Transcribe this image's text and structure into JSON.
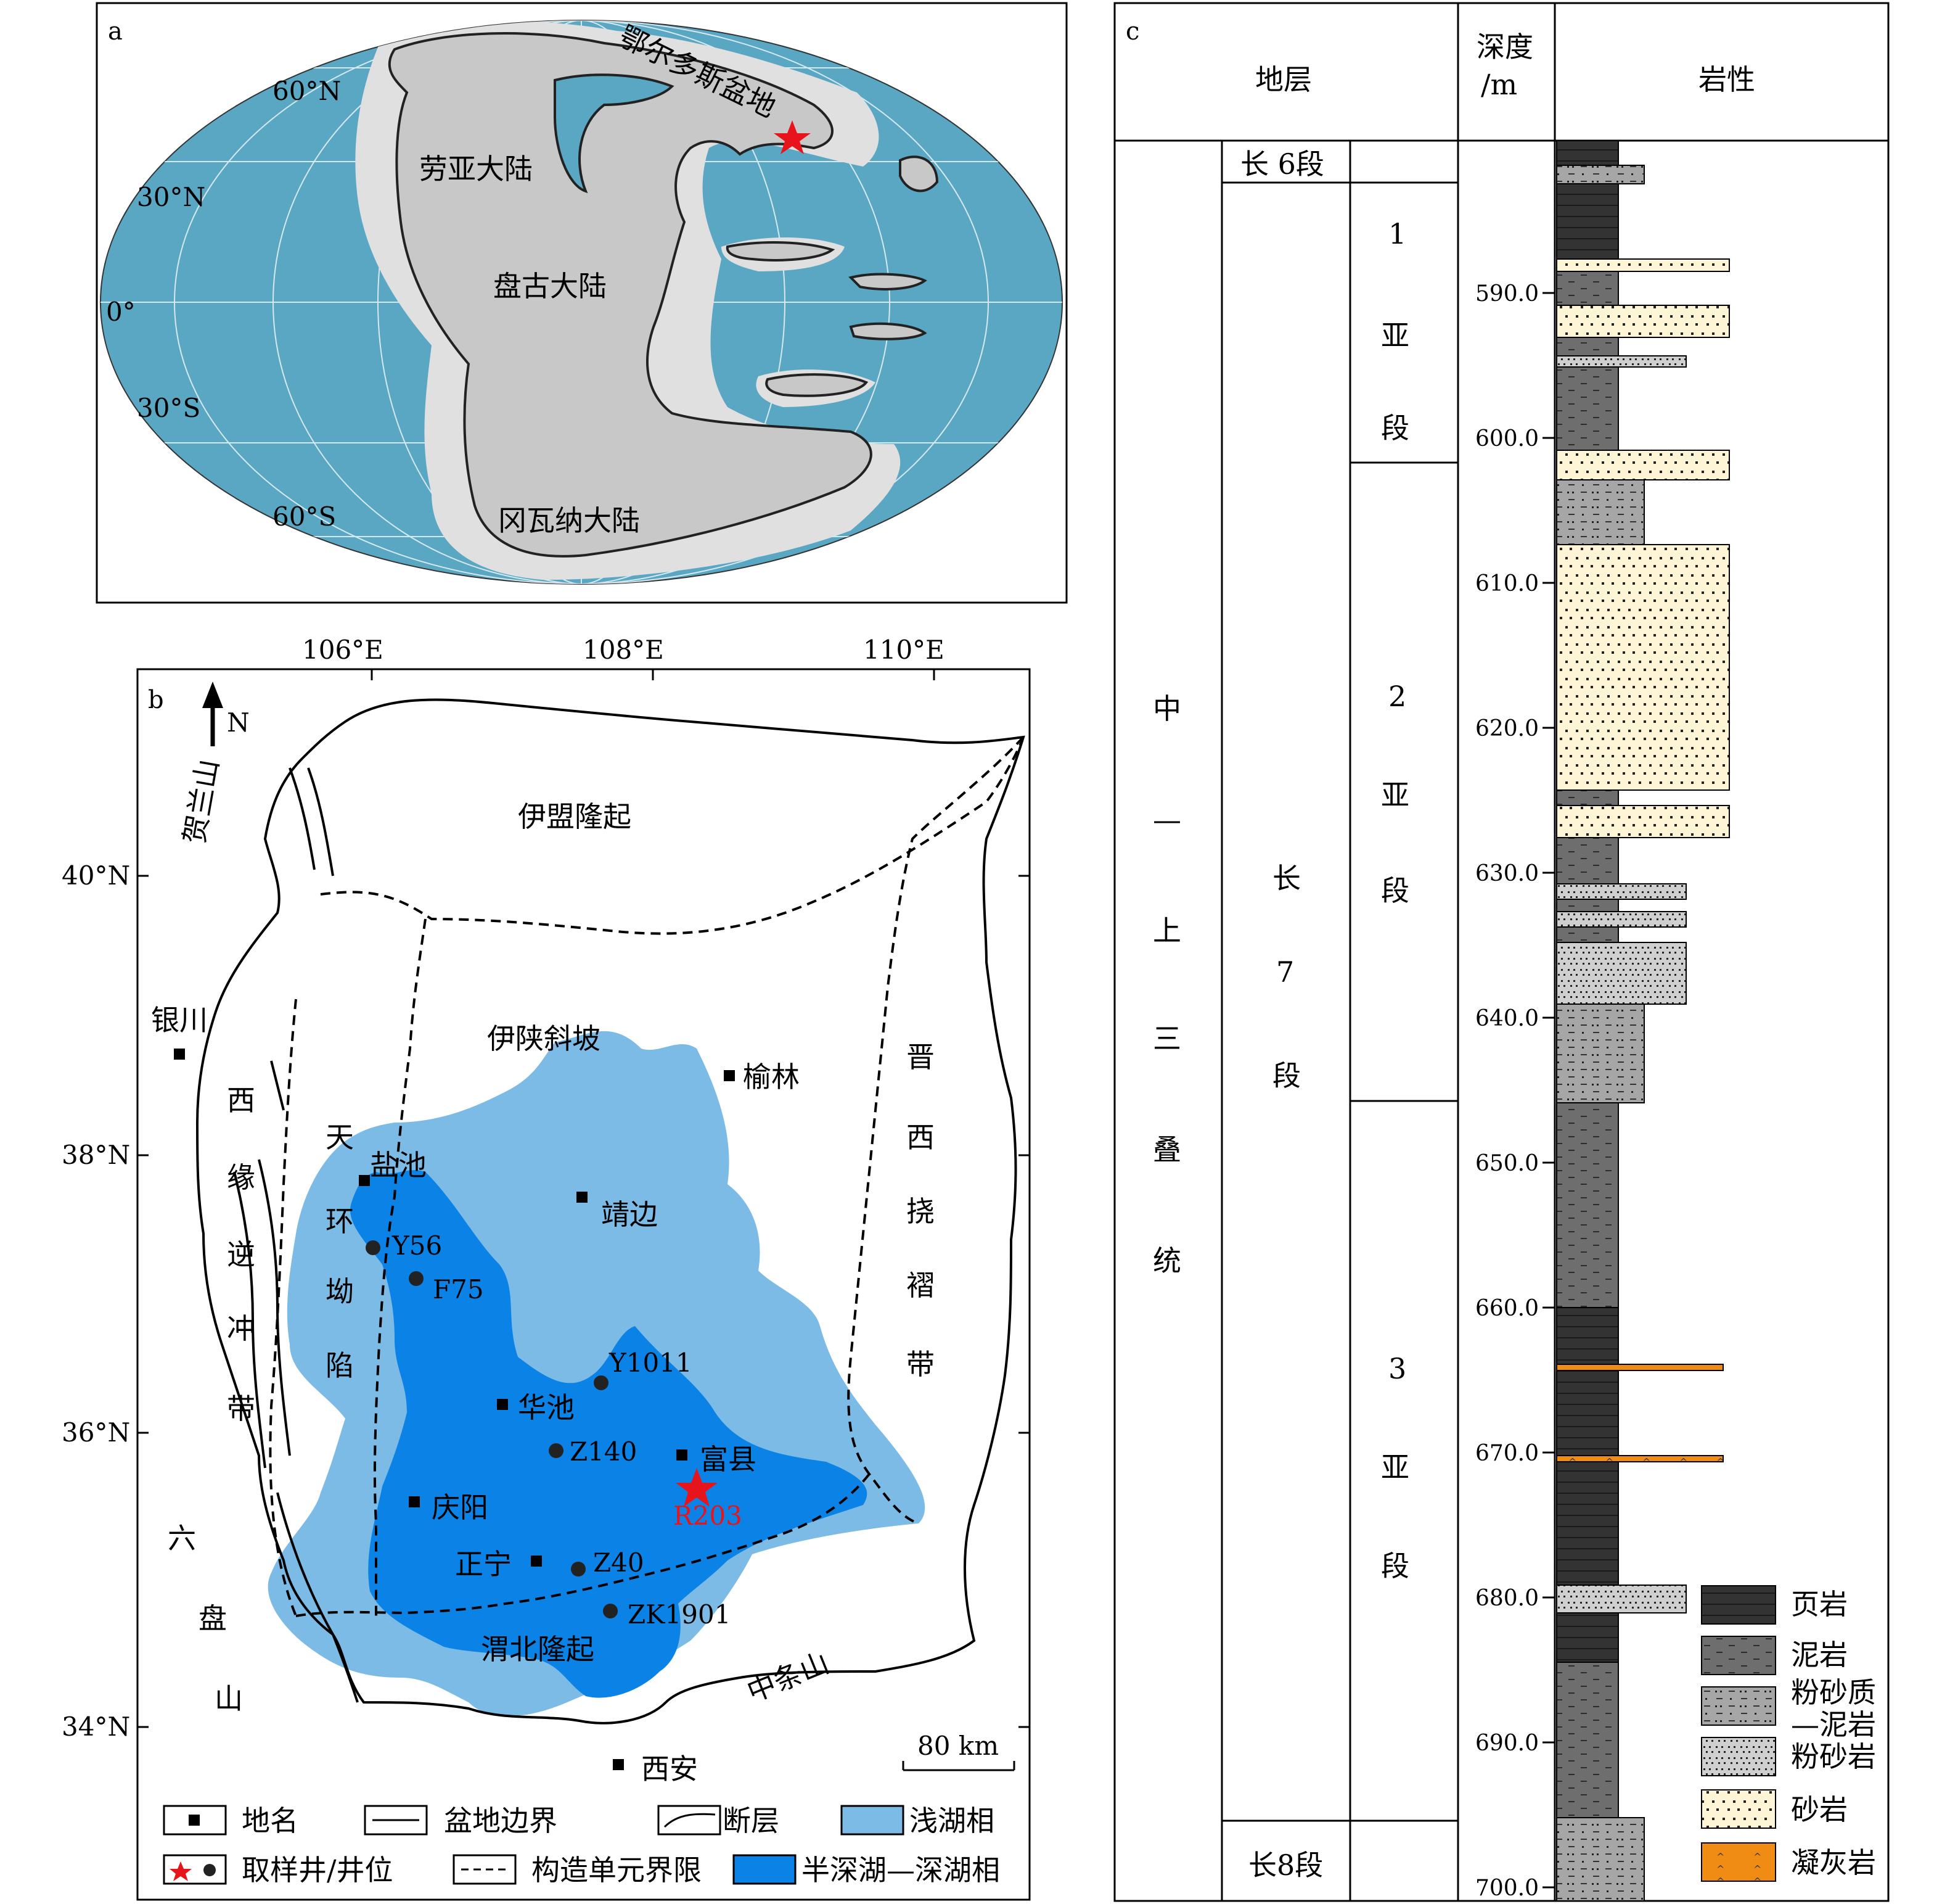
{
  "panel_a": {
    "letter": "a",
    "lat_labels": [
      "60°N",
      "30°N",
      "0°",
      "30°S",
      "60°S"
    ],
    "continents": {
      "laurasia": "劳亚大陆",
      "pangea": "盘古大陆",
      "gondwana": "冈瓦纳大陆",
      "ordos": "鄂尔多斯盆地"
    },
    "colors": {
      "ocean": "#5aa7c4",
      "land": "#c8c8c8",
      "shelf": "#e0e0e0",
      "star": "#e8141b"
    }
  },
  "panel_b": {
    "letter": "b",
    "north": "N",
    "lon_labels": [
      "106°E",
      "108°E",
      "110°E"
    ],
    "lat_labels": [
      "40°N",
      "38°N",
      "36°N",
      "34°N"
    ],
    "units": {
      "yimeng": "伊盟隆起",
      "yishan": "伊陕斜坡",
      "tianhuan": [
        "天",
        "环",
        "坳",
        "陷"
      ],
      "jinxi": [
        "晋",
        "西",
        "挠",
        "褶",
        "带"
      ],
      "xiyuan": [
        "西",
        "缘",
        "逆",
        "冲",
        "带"
      ],
      "weibei": "渭北隆起",
      "helan": "贺兰山",
      "liupan": [
        "六",
        "盘",
        "山"
      ],
      "zhongtiao": "中条山"
    },
    "places": {
      "yinchuan": "银川",
      "yulin": "榆林",
      "yanchi": "盐池",
      "jingbian": "靖边",
      "huachi": "华池",
      "fuxian": "富县",
      "qingyang": "庆阳",
      "zhengning": "正宁",
      "xian": "西安"
    },
    "wells": {
      "y56": "Y56",
      "f75": "F75",
      "y1011": "Y1011",
      "z140": "Z140",
      "z40": "Z40",
      "zk1901": "ZK1901",
      "r203": "R203"
    },
    "scale": "80 km",
    "legend": {
      "place": "地名",
      "basin_boundary": "盆地边界",
      "fault": "断层",
      "shallow_lake": "浅湖相",
      "well": "取样井/井位",
      "unit_boundary": "构造单元界限",
      "deep_lake": "半深湖—深湖相"
    },
    "colors": {
      "shallow": "#7bbbe6",
      "deep": "#0a82e6",
      "star": "#e8141b"
    }
  },
  "panel_c": {
    "letter": "c",
    "headers": {
      "strata": "地层",
      "depth": "深度\n/m",
      "lithology": "岩性"
    },
    "series": [
      "中",
      "—",
      "上",
      "三",
      "叠",
      "统"
    ],
    "members": {
      "chang6": "长 6段",
      "chang7": [
        "长",
        "7",
        "段"
      ],
      "chang8": "长8段"
    },
    "submembers": [
      [
        "1",
        "亚",
        "段"
      ],
      [
        "2",
        "亚",
        "段"
      ],
      [
        "3",
        "亚",
        "段"
      ]
    ],
    "depth_ticks": [
      "590.0",
      "600.0",
      "610.0",
      "620.0",
      "630.0",
      "640.0",
      "650.0",
      "660.0",
      "670.0",
      "680.0",
      "690.0",
      "700.0"
    ],
    "legend": {
      "shale": "页岩",
      "mudstone": "泥岩",
      "silty_mud_1": "粉砂质",
      "silty_mud_2": "—泥岩",
      "siltstone": "粉砂岩",
      "sandstone": "砂岩",
      "tuff": "凝灰岩"
    },
    "colors": {
      "shale": "#333333",
      "mudstone": "#6e6e6e",
      "silty_mud": "#a6a6a6",
      "siltstone": "#cfcfcf",
      "sandstone": "#fdf5d6",
      "tuff": "#f08c14"
    }
  }
}
